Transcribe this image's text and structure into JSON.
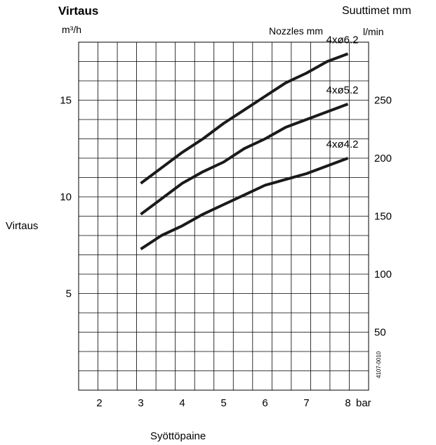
{
  "labels": {
    "title": "Virtaus",
    "left_unit": "m³/h",
    "right_title": "Suuttimet mm",
    "nozzles": "Nozzles mm",
    "right_unit": "l/min",
    "side_label": "Virtaus",
    "x_title": "Syöttöpaine",
    "figure_code": "4107-0010"
  },
  "chart_data": {
    "type": "line",
    "x_unit_label": "bar",
    "xlim": [
      1.5,
      8.5
    ],
    "x_ticks": [
      2,
      3,
      4,
      5,
      6,
      7,
      8
    ],
    "y_left": {
      "unit": "m³/h",
      "lim": [
        0,
        18
      ],
      "ticks": [
        5,
        10,
        15
      ]
    },
    "y_right": {
      "unit": "l/min",
      "lim": [
        0,
        300
      ],
      "ticks": [
        50,
        100,
        150,
        200,
        250
      ]
    },
    "grid": true,
    "series": [
      {
        "name": "4xø6.2",
        "x": [
          3,
          3.5,
          4,
          4.5,
          5,
          5.5,
          6,
          6.5,
          7,
          7.5,
          8
        ],
        "values": [
          10.7,
          11.5,
          12.3,
          13.0,
          13.8,
          14.5,
          15.2,
          15.9,
          16.4,
          17.0,
          17.4
        ]
      },
      {
        "name": "4xø5.2",
        "x": [
          3,
          3.5,
          4,
          4.5,
          5,
          5.5,
          6,
          6.5,
          7,
          7.5,
          8
        ],
        "values": [
          9.1,
          9.9,
          10.7,
          11.3,
          11.8,
          12.5,
          13.0,
          13.6,
          14.0,
          14.4,
          14.8
        ]
      },
      {
        "name": "4xø4.2",
        "x": [
          3,
          3.5,
          4,
          4.5,
          5,
          5.5,
          6,
          6.5,
          7,
          7.5,
          8
        ],
        "values": [
          7.3,
          8.0,
          8.5,
          9.1,
          9.6,
          10.1,
          10.6,
          10.9,
          11.2,
          11.6,
          12.0
        ]
      }
    ]
  }
}
